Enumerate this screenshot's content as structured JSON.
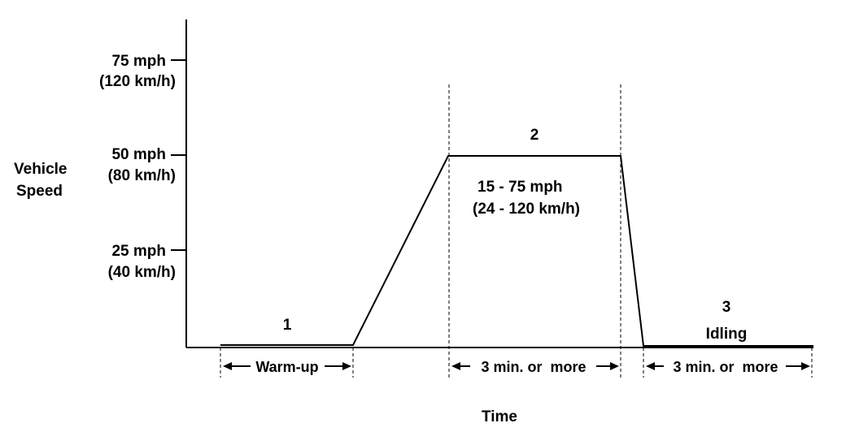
{
  "y_axis": {
    "label_line1": "Vehicle",
    "label_line2": "Speed",
    "ticks": [
      {
        "mph": "75 mph",
        "kmh": "(120 km/h)"
      },
      {
        "mph": "50 mph",
        "kmh": "(80 km/h)"
      },
      {
        "mph": "25 mph",
        "kmh": "(40 km/h)"
      }
    ]
  },
  "x_axis": {
    "label": "Time"
  },
  "stages": [
    {
      "number": "1",
      "duration": "Warm-up"
    },
    {
      "number": "2",
      "range_mph": "15 - 75 mph",
      "range_kmh": "(24 - 120 km/h)",
      "duration": "3 min. or  more"
    },
    {
      "number": "3",
      "name": "Idling",
      "duration": "3 min. or  more"
    }
  ]
}
